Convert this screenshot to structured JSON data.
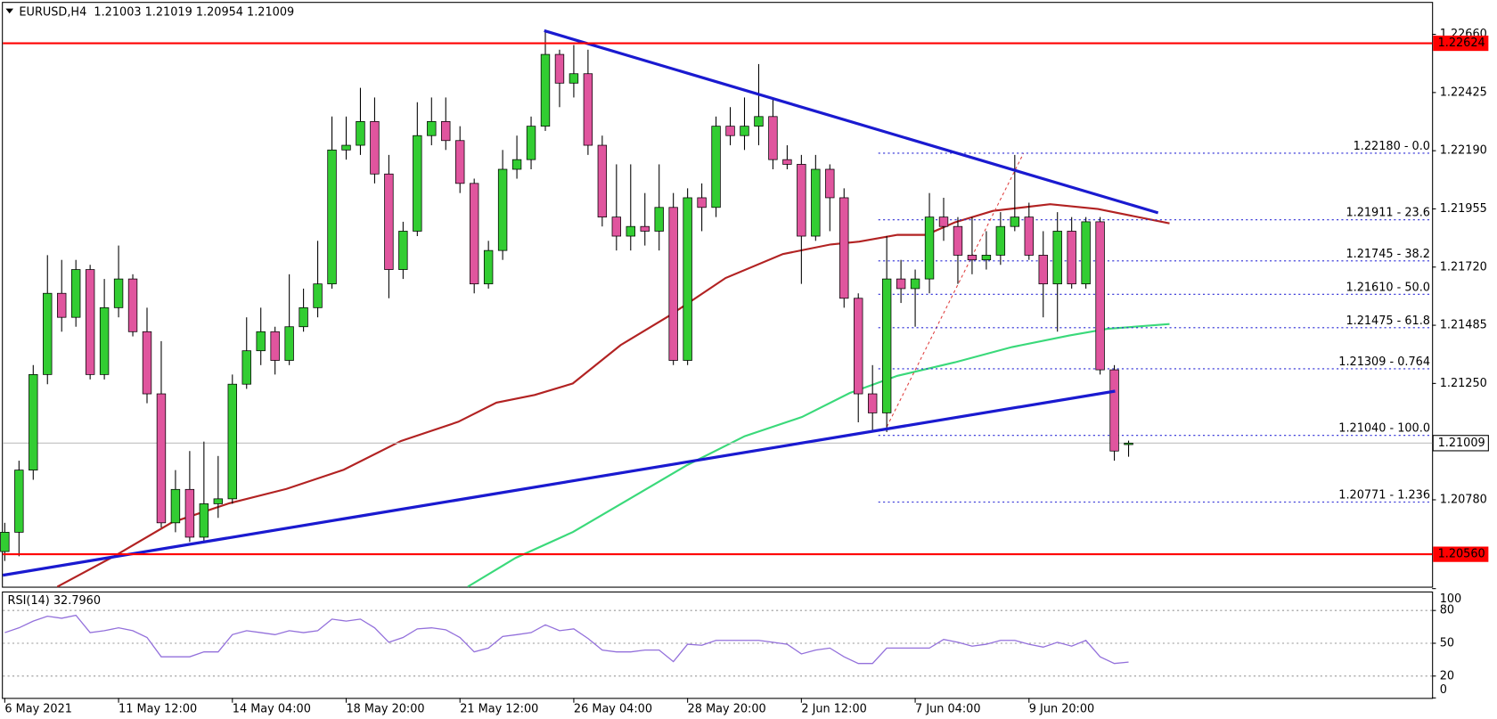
{
  "chart_data": {
    "type": "candlestick",
    "title": "EURUSD,H4  1.21003 1.21019 1.20954 1.21009",
    "categories": [
      "6 May 2021",
      null,
      null,
      null,
      null,
      null,
      null,
      null,
      "11 May 12:00",
      null,
      null,
      null,
      null,
      null,
      null,
      null,
      "14 May 04:00",
      null,
      null,
      null,
      null,
      null,
      null,
      null,
      "18 May 20:00",
      null,
      null,
      null,
      null,
      null,
      null,
      null,
      "21 May 12:00",
      null,
      null,
      null,
      null,
      null,
      null,
      null,
      "26 May 04:00",
      null,
      null,
      null,
      null,
      null,
      null,
      null,
      "28 May 20:00",
      null,
      null,
      null,
      null,
      null,
      null,
      null,
      "2 Jun 12:00",
      null,
      null,
      null,
      null,
      null,
      null,
      null,
      "7 Jun 04:00",
      null,
      null,
      null,
      null,
      null,
      null,
      null,
      "9 Jun 20:00",
      null,
      null,
      null,
      null,
      null,
      null,
      null
    ],
    "open": [
      1.20571,
      1.20649,
      1.209,
      1.21286,
      1.21614,
      1.21517,
      1.2171,
      1.21286,
      1.21556,
      1.21672,
      1.21459,
      1.21208,
      1.20687,
      1.20822,
      1.20629,
      1.20764,
      1.20784,
      1.21247,
      1.21382,
      1.21459,
      1.21343,
      1.21479,
      1.21556,
      1.21652,
      1.22193,
      1.22212,
      1.22308,
      1.22096,
      1.2171,
      1.21865,
      1.22251,
      1.22308,
      1.22231,
      1.22058,
      1.21652,
      1.21787,
      1.22115,
      1.22154,
      1.22289,
      1.22579,
      1.22463,
      1.22501,
      1.22212,
      1.21922,
      1.21845,
      1.21884,
      1.21865,
      1.21961,
      1.21343,
      1.22,
      1.21961,
      1.22289,
      1.22251,
      1.22289,
      1.22328,
      1.22154,
      1.22135,
      1.21845,
      1.22115,
      1.22,
      1.21594,
      1.21208,
      1.21131,
      1.21672,
      1.21633,
      1.21672,
      1.21922,
      1.21884,
      1.21768,
      1.21749,
      1.21768,
      1.21884,
      1.21922,
      1.21768,
      1.21652,
      1.21865,
      1.21652,
      1.21903,
      1.21305,
      1.21003
    ],
    "close": [
      1.20649,
      1.209,
      1.21286,
      1.21614,
      1.21517,
      1.2171,
      1.21286,
      1.21556,
      1.21672,
      1.21459,
      1.21208,
      1.20687,
      1.20822,
      1.20629,
      1.20764,
      1.20784,
      1.21247,
      1.21382,
      1.21459,
      1.21343,
      1.21479,
      1.21556,
      1.21652,
      1.22193,
      1.22212,
      1.22308,
      1.22096,
      1.2171,
      1.21865,
      1.22251,
      1.22308,
      1.22231,
      1.22058,
      1.21652,
      1.21787,
      1.22115,
      1.22154,
      1.22289,
      1.22579,
      1.22463,
      1.22501,
      1.22212,
      1.21922,
      1.21845,
      1.21884,
      1.21865,
      1.21961,
      1.21343,
      1.22,
      1.21961,
      1.22289,
      1.22251,
      1.22289,
      1.22328,
      1.22154,
      1.22135,
      1.21845,
      1.22115,
      1.22,
      1.21594,
      1.21208,
      1.21131,
      1.21672,
      1.21633,
      1.21672,
      1.21922,
      1.21884,
      1.21768,
      1.21749,
      1.21768,
      1.21884,
      1.21922,
      1.21768,
      1.21652,
      1.21865,
      1.21652,
      1.21903,
      1.21305,
      1.20977,
      1.21009
    ],
    "high": [
      1.20687,
      1.20938,
      1.21324,
      1.21768,
      1.21749,
      1.21749,
      1.21729,
      1.21672,
      1.21807,
      1.21691,
      1.21556,
      1.21421,
      1.209,
      1.20977,
      1.21015,
      1.20957,
      1.21286,
      1.21517,
      1.21556,
      1.21479,
      1.21691,
      1.21633,
      1.21826,
      1.22328,
      1.22328,
      1.22444,
      1.22405,
      1.22173,
      1.21903,
      1.22386,
      1.22405,
      1.22405,
      1.22289,
      1.22077,
      1.21826,
      1.22193,
      1.22251,
      1.22328,
      1.22675,
      1.22598,
      1.22617,
      1.22598,
      1.22251,
      1.22135,
      1.22135,
      1.22019,
      1.22135,
      1.22019,
      1.22038,
      1.22058,
      1.22328,
      1.22366,
      1.22405,
      1.2254,
      1.22405,
      1.22212,
      1.22173,
      1.22173,
      1.22135,
      1.22038,
      1.21614,
      1.21324,
      1.21845,
      1.21749,
      1.2171,
      1.22019,
      1.22,
      1.21922,
      1.21922,
      1.21865,
      1.21942,
      1.22173,
      1.2198,
      1.21865,
      1.21942,
      1.21922,
      1.21922,
      1.21922,
      1.21324,
      1.21019
    ],
    "low": [
      1.20533,
      1.20552,
      1.20861,
      1.21247,
      1.21459,
      1.21479,
      1.21266,
      1.21266,
      1.21517,
      1.2144,
      1.2117,
      1.20668,
      1.20649,
      1.2061,
      1.2061,
      1.20707,
      1.20764,
      1.21228,
      1.21324,
      1.21286,
      1.21324,
      1.21459,
      1.21517,
      1.21633,
      1.22154,
      1.22173,
      1.22058,
      1.21594,
      1.21672,
      1.21845,
      1.22212,
      1.22193,
      1.22019,
      1.21614,
      1.21633,
      1.21749,
      1.22077,
      1.22115,
      1.2227,
      1.22366,
      1.22405,
      1.22173,
      1.21884,
      1.21787,
      1.21787,
      1.21807,
      1.21787,
      1.21324,
      1.21324,
      1.21865,
      1.21922,
      1.22212,
      1.22193,
      1.22212,
      1.22115,
      1.22115,
      1.21652,
      1.21826,
      1.21865,
      1.21556,
      1.21093,
      1.21054,
      1.21054,
      1.21575,
      1.21479,
      1.21614,
      1.21826,
      1.21652,
      1.21691,
      1.2171,
      1.21729,
      1.21865,
      1.21749,
      1.21517,
      1.21459,
      1.21633,
      1.21633,
      1.21286,
      1.20938,
      1.20954
    ],
    "up_color": "#32cd32",
    "down_color": "#e0559e",
    "ylim": [
      1.20429,
      1.22791
    ],
    "yticks": [
      {
        "value": 1.2266,
        "label": "1.22660"
      },
      1.22425,
      {
        "value": 1.2219,
        "label": "1.22190"
      },
      1.21955,
      {
        "value": 1.2172,
        "label": "1.21720"
      },
      1.21485,
      {
        "value": 1.2125,
        "label": "1.21250"
      },
      {
        "value": 1.2078,
        "label": "1.20780"
      }
    ],
    "price_lines": [
      {
        "value": 1.22624,
        "color": "#ff0000"
      },
      {
        "value": 1.2056,
        "label": "1.20560",
        "color": "#ff0000"
      }
    ],
    "current_price": 1.21009,
    "fib_levels": [
      {
        "value": 1.2218,
        "label": "1.22180 - 0.0"
      },
      {
        "value": 1.21911,
        "label": "1.21911 - 23.6"
      },
      {
        "value": 1.21745,
        "label": "1.21745 - 38.2"
      },
      {
        "value": 1.2161,
        "label": "1.21610 - 50.0"
      },
      {
        "value": 1.21475,
        "label": "1.21475 - 61.8"
      },
      {
        "value": 1.21309,
        "label": "1.21309 - 0.764"
      },
      {
        "value": 1.2104,
        "label": "1.21040 - 100.0"
      },
      {
        "value": 1.20771,
        "label": "1.20771 - 1.236"
      }
    ],
    "fib_color": "#2b2bd6",
    "rsi": {
      "title": "RSI(14) 32.7960",
      "color": "#9370db",
      "ylim": [
        0,
        100
      ],
      "yticks": [
        100,
        80,
        50,
        20,
        0
      ],
      "levels": [
        80,
        50,
        20
      ],
      "values": [
        59.7,
        64.1,
        70.3,
        74.7,
        72.9,
        75.6,
        59.7,
        61.5,
        64.1,
        61.5,
        55.3,
        37.6,
        37.6,
        37.6,
        42.1,
        42.1,
        57.9,
        61.5,
        59.7,
        57.9,
        61.5,
        59.7,
        61.5,
        72.1,
        70.3,
        72.1,
        64.1,
        50.9,
        55.3,
        63.2,
        64.1,
        62.4,
        55.3,
        42.1,
        45.6,
        56.2,
        57.9,
        59.7,
        66.8,
        61.5,
        63.2,
        54.4,
        43.8,
        42.1,
        42.1,
        43.8,
        43.8,
        33.2,
        49.1,
        48.2,
        52.6,
        52.6,
        52.6,
        52.6,
        50.9,
        49.1,
        40.3,
        43.8,
        45.6,
        37.6,
        31.5,
        31.5,
        45.6,
        45.6,
        45.6,
        45.6,
        53.5,
        50.9,
        47.4,
        49.1,
        52.6,
        52.6,
        49.1,
        46.5,
        50.9,
        47.4,
        52.6,
        37.6,
        31.5,
        32.8
      ]
    }
  }
}
